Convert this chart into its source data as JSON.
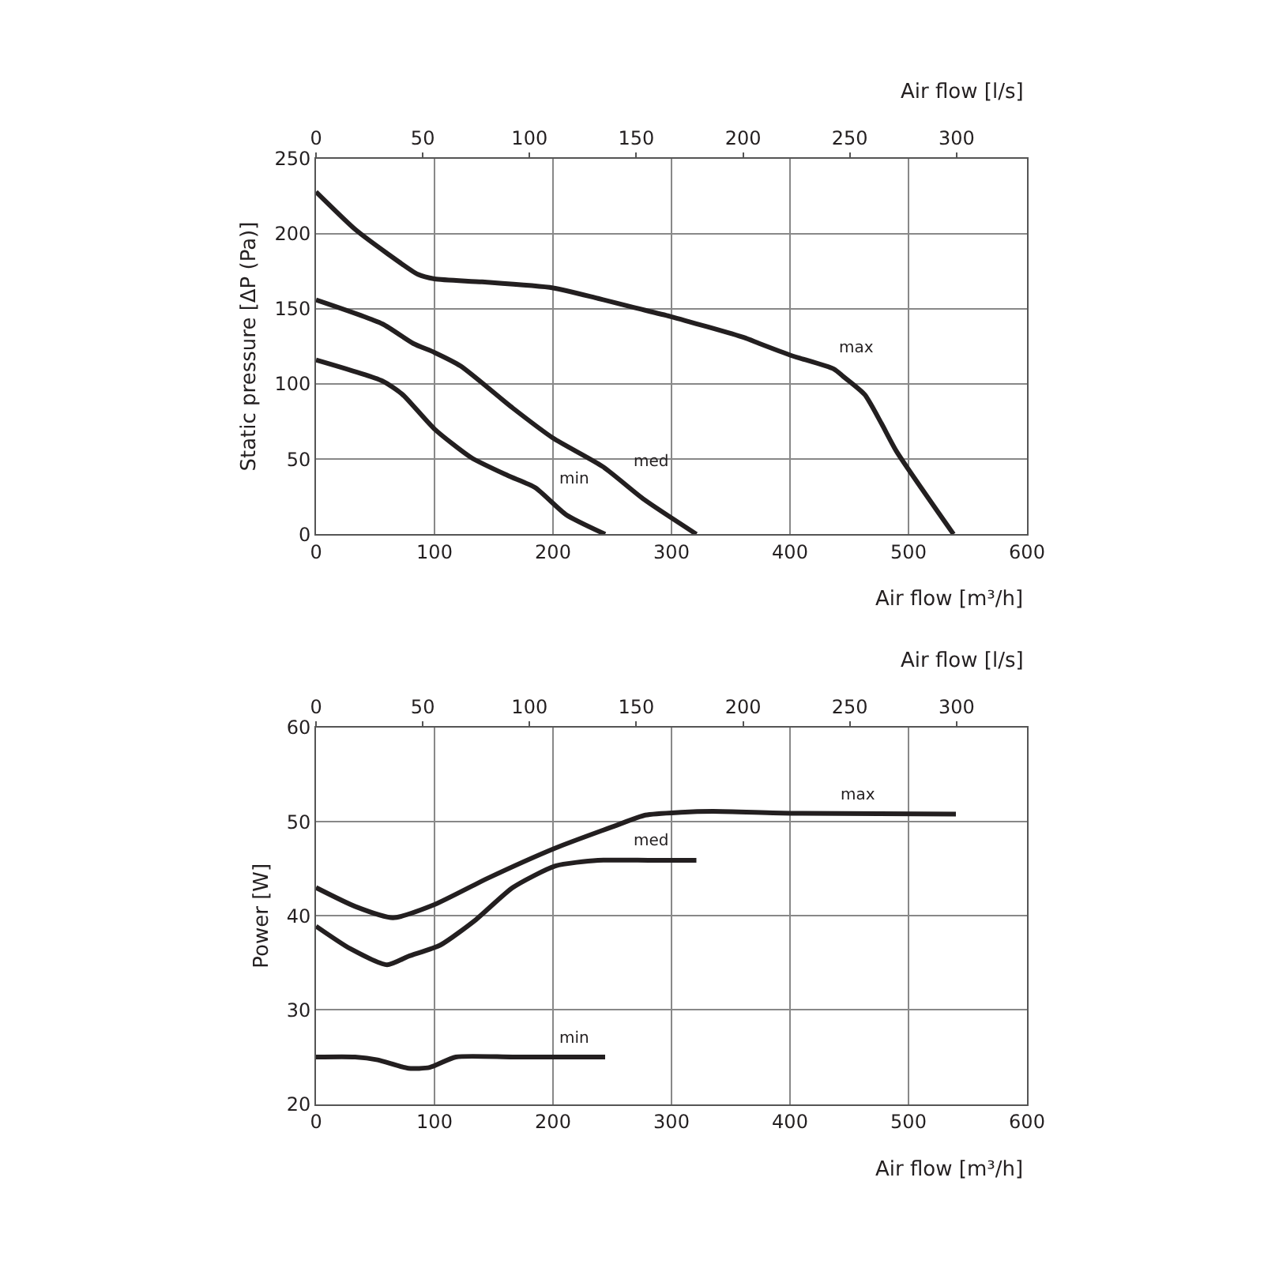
{
  "chart_data": [
    {
      "type": "line",
      "xlabel": "Air flow [m³/h]",
      "x2label": "Air flow [l/s]",
      "ylabel": "Static pressure [ΔP (Pa)]",
      "xlim": [
        0,
        600
      ],
      "xticks": [
        0,
        100,
        200,
        300,
        400,
        500,
        600
      ],
      "x2lim": [
        0,
        333
      ],
      "x2ticks": [
        0,
        50,
        100,
        150,
        200,
        250,
        300
      ],
      "ylim": [
        0,
        250
      ],
      "yticks": [
        0,
        50,
        100,
        150,
        200,
        250
      ],
      "grid": true,
      "legend": false,
      "line_style": "solid",
      "marker": "none",
      "series": [
        {
          "name": "max",
          "color": "#231f20",
          "x": [
            0,
            33,
            60,
            86,
            100,
            140,
            200,
            238,
            268,
            299,
            361,
            374,
            401,
            437,
            445,
            463,
            477,
            490,
            538
          ],
          "values": [
            228,
            203,
            187,
            173,
            170,
            168,
            164,
            157,
            151,
            145,
            131,
            127,
            119,
            110,
            105,
            93,
            74,
            55,
            0
          ]
        },
        {
          "name": "med",
          "color": "#231f20",
          "x": [
            0,
            56,
            82,
            100,
            122,
            166,
            200,
            242,
            277,
            321
          ],
          "values": [
            156,
            140,
            127,
            121,
            112,
            84,
            64,
            45,
            23,
            0
          ]
        },
        {
          "name": "min",
          "color": "#231f20",
          "x": [
            0,
            56,
            73,
            100,
            131,
            162,
            185,
            211,
            244
          ],
          "values": [
            116,
            102,
            93,
            70,
            51,
            39,
            31,
            13,
            0
          ]
        }
      ]
    },
    {
      "type": "line",
      "xlabel": "Air flow [m³/h]",
      "x2label": "Air flow [l/s]",
      "ylabel": "Power [W]",
      "xlim": [
        0,
        600
      ],
      "xticks": [
        0,
        100,
        200,
        300,
        400,
        500,
        600
      ],
      "x2lim": [
        0,
        333
      ],
      "x2ticks": [
        0,
        50,
        100,
        150,
        200,
        250,
        300
      ],
      "ylim": [
        20,
        60
      ],
      "yticks": [
        20,
        30,
        40,
        50,
        60
      ],
      "grid": true,
      "legend": false,
      "line_style": "solid",
      "marker": "none",
      "series": [
        {
          "name": "max",
          "color": "#231f20",
          "x": [
            0,
            33,
            65,
            100,
            145,
            202,
            251,
            278,
            308,
            335,
            401,
            540
          ],
          "values": [
            43.0,
            41.0,
            39.8,
            41.2,
            44.0,
            47.2,
            49.5,
            50.7,
            51.0,
            51.1,
            50.9,
            50.8
          ]
        },
        {
          "name": "med",
          "color": "#231f20",
          "x": [
            0,
            29,
            60,
            78,
            105,
            135,
            166,
            202,
            238,
            282,
            321
          ],
          "values": [
            38.9,
            36.5,
            34.8,
            35.7,
            36.9,
            39.6,
            43.0,
            45.3,
            45.9,
            45.9,
            45.9
          ]
        },
        {
          "name": "min",
          "color": "#231f20",
          "x": [
            0,
            33,
            52,
            78,
            96,
            118,
            166,
            244
          ],
          "values": [
            25.0,
            25.0,
            24.7,
            23.8,
            23.9,
            25.0,
            25.0,
            25.0
          ]
        }
      ]
    }
  ]
}
